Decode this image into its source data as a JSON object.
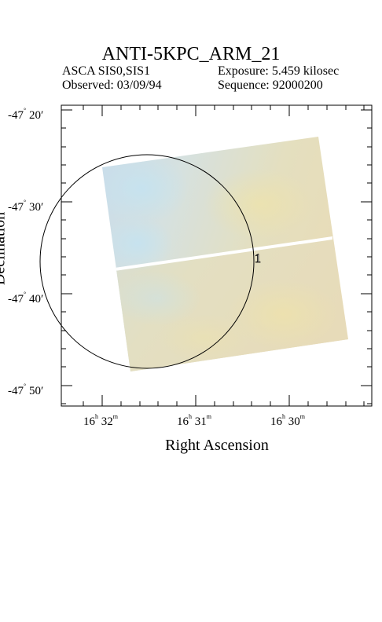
{
  "title": "ANTI-5KPC_ARM_21",
  "header": {
    "instrument": "ASCA SIS0,SIS1",
    "observed": "Observed: 03/09/94",
    "exposure": "Exposure: 5.459 kilosec",
    "sequence": "Sequence: 92000200"
  },
  "axes": {
    "xlabel": "Right Ascension",
    "ylabel": "Declination",
    "x_ticks": [
      {
        "h": "16",
        "m": "32",
        "h_unit": "h",
        "m_unit": "m"
      },
      {
        "h": "16",
        "m": "31",
        "h_unit": "h",
        "m_unit": "m"
      },
      {
        "h": "16",
        "m": "30",
        "h_unit": "h",
        "m_unit": "m"
      }
    ],
    "y_ticks": [
      {
        "deg": "-47",
        "arcmin": "20"
      },
      {
        "deg": "-47",
        "arcmin": "30"
      },
      {
        "deg": "-47",
        "arcmin": "40"
      },
      {
        "deg": "-47",
        "arcmin": "50"
      }
    ]
  },
  "source_label": "1",
  "colors": {
    "image_blue": "#c9dbe8",
    "image_yellow": "#e6dfb7",
    "frame": "#000000"
  }
}
